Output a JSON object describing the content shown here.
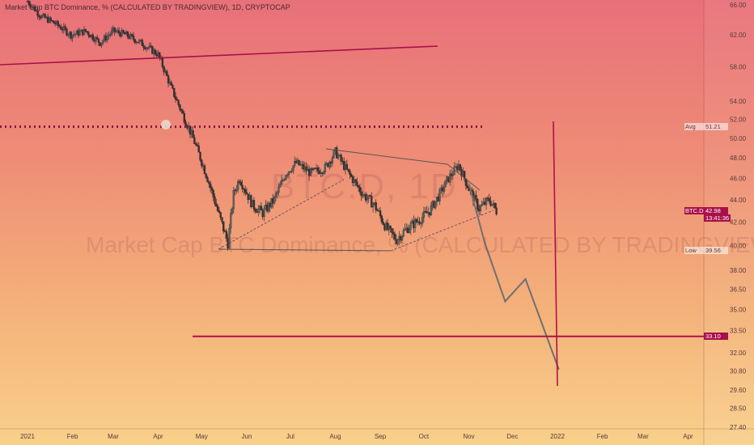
{
  "header": {
    "title": "Market Cap BTC Dominance, % (CALCULATED BY TRADINGVIEW), 1D, CRYPTOCAP"
  },
  "watermark": {
    "symbol": "BTC.D, 1D",
    "subtitle": "Market Cap BTC Dominance, % (CALCULATED BY TRADINGVIEW)"
  },
  "colors": {
    "candle_up": "#3a4a4a",
    "candle_down": "#3a3030",
    "support_line": "#b0104a",
    "projection": "#707070",
    "axis_text": "#5a3a3a"
  },
  "chart_data": {
    "type": "candlestick",
    "x_ticks": [
      "2021",
      "Feb",
      "Mar",
      "Apr",
      "May",
      "Jun",
      "Jul",
      "Aug",
      "Sep",
      "Oct",
      "Nov",
      "Dec",
      "2022",
      "Feb",
      "Mar",
      "Apr"
    ],
    "y_ticks": [
      "66.00",
      "62.00",
      "58.00",
      "54.00",
      "52.00",
      "50.00",
      "48.00",
      "46.00",
      "44.00",
      "42.00",
      "40.00",
      "38.00",
      "36.50",
      "35.00",
      "33.50",
      "32.00",
      "30.80",
      "29.60",
      "28.50",
      "27.40"
    ],
    "y_scale": "log",
    "date_range": [
      "2021-01-01",
      "2022-04-30"
    ],
    "price_path": [
      [
        "2021-01-01",
        66.5
      ],
      [
        "2021-01-10",
        64.5
      ],
      [
        "2021-01-20",
        63.5
      ],
      [
        "2021-01-31",
        62.0
      ],
      [
        "2021-02-10",
        62.5
      ],
      [
        "2021-02-20",
        61.0
      ],
      [
        "2021-03-01",
        62.5
      ],
      [
        "2021-03-10",
        62.0
      ],
      [
        "2021-03-20",
        61.0
      ],
      [
        "2021-04-01",
        59.5
      ],
      [
        "2021-04-10",
        55.5
      ],
      [
        "2021-04-18",
        52.5
      ],
      [
        "2021-04-25",
        50.0
      ],
      [
        "2021-05-05",
        46.0
      ],
      [
        "2021-05-12",
        43.0
      ],
      [
        "2021-05-19",
        40.2
      ],
      [
        "2021-05-23",
        44.5
      ],
      [
        "2021-05-27",
        46.0
      ],
      [
        "2021-06-05",
        43.5
      ],
      [
        "2021-06-12",
        42.8
      ],
      [
        "2021-06-20",
        44.0
      ],
      [
        "2021-06-28",
        46.5
      ],
      [
        "2021-07-05",
        47.5
      ],
      [
        "2021-07-15",
        46.5
      ],
      [
        "2021-07-25",
        47.0
      ],
      [
        "2021-08-01",
        48.6
      ],
      [
        "2021-08-10",
        46.5
      ],
      [
        "2021-08-20",
        44.5
      ],
      [
        "2021-08-28",
        43.5
      ],
      [
        "2021-09-05",
        41.5
      ],
      [
        "2021-09-12",
        40.5
      ],
      [
        "2021-09-20",
        41.5
      ],
      [
        "2021-09-28",
        42.2
      ],
      [
        "2021-10-05",
        43.0
      ],
      [
        "2021-10-12",
        44.5
      ],
      [
        "2021-10-18",
        46.0
      ],
      [
        "2021-10-25",
        47.3
      ],
      [
        "2021-11-01",
        45.0
      ],
      [
        "2021-11-08",
        43.2
      ],
      [
        "2021-11-15",
        44.0
      ],
      [
        "2021-11-20",
        42.98
      ]
    ],
    "horizontal_levels": [
      {
        "value": 51.21,
        "style": "dotted"
      },
      {
        "value": 33.1,
        "style": "solid"
      }
    ],
    "projection_path": [
      [
        "2021-11-01",
        45.5
      ],
      [
        "2021-11-12",
        40.2
      ],
      [
        "2021-11-26",
        35.6
      ],
      [
        "2021-12-10",
        37.3
      ],
      [
        "2022-01-02",
        30.9
      ]
    ],
    "marked_levels": [
      {
        "label": "Avg",
        "value": "51.21"
      },
      {
        "label": "BTC.D",
        "value": "42.98",
        "sub": "13:41:36"
      },
      {
        "label": "Low",
        "value": "39.56"
      },
      {
        "label": "",
        "value": "33.10"
      }
    ]
  }
}
